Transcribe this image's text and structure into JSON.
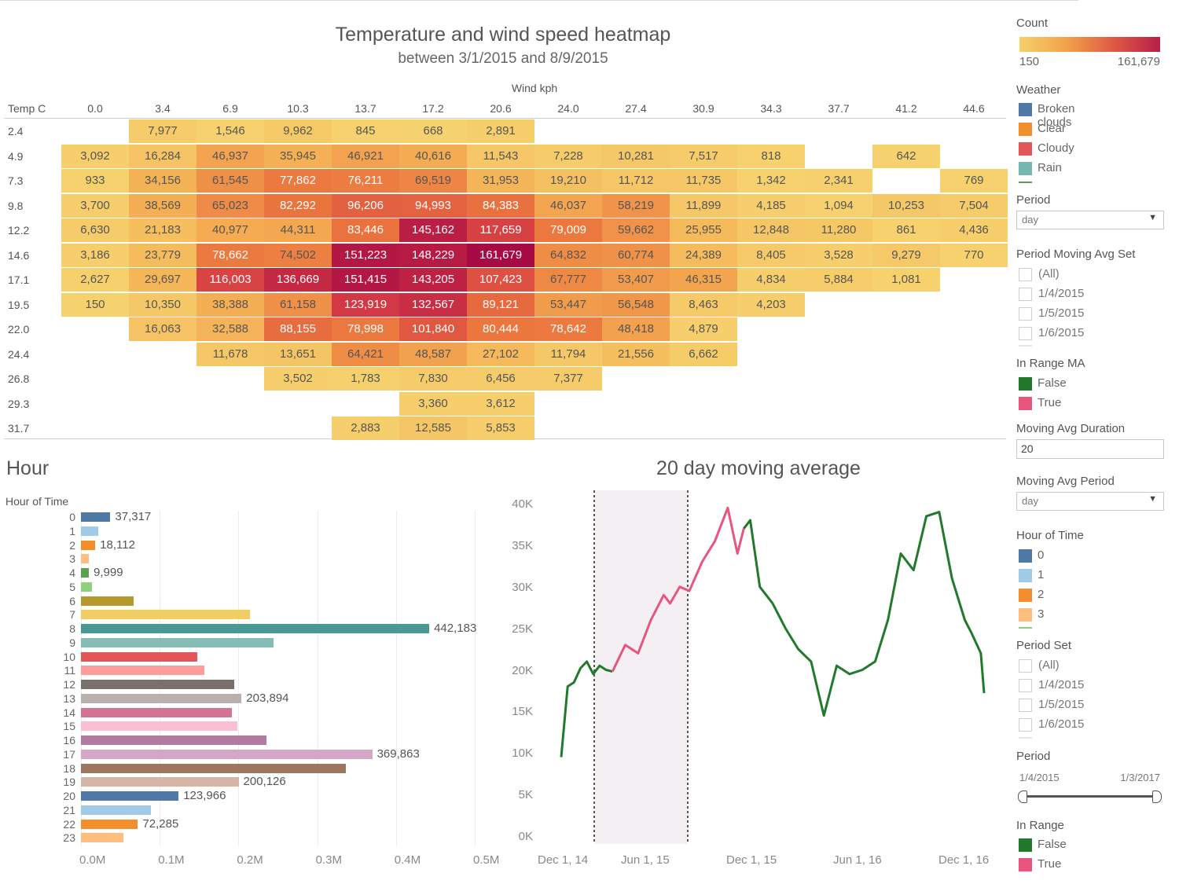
{
  "heatmap": {
    "title": "Temperature and wind speed heatmap",
    "subtitle": "between 3/1/2015 and 8/9/2015",
    "x_axis_title": "Wind kph",
    "y_axis_title": "Temp C",
    "wind_cols": [
      "0.0",
      "3.4",
      "6.9",
      "10.3",
      "13.7",
      "17.2",
      "20.6",
      "24.0",
      "27.4",
      "30.9",
      "34.3",
      "37.7",
      "41.2",
      "44.6"
    ],
    "temp_rows": [
      "2.4",
      "4.9",
      "7.3",
      "9.8",
      "12.2",
      "14.6",
      "17.1",
      "19.5",
      "22.0",
      "24.4",
      "26.8",
      "29.3",
      "31.7"
    ],
    "count_min": 150,
    "count_max": 161679,
    "cells": [
      [
        null,
        "7,977",
        "1,546",
        "9,962",
        "845",
        "668",
        "2,891",
        null,
        null,
        null,
        null,
        null,
        null,
        null
      ],
      [
        "3,092",
        "16,284",
        "46,937",
        "35,945",
        "46,921",
        "40,616",
        "11,543",
        "7,228",
        "10,281",
        "7,517",
        "818",
        null,
        "642",
        null
      ],
      [
        "933",
        "34,156",
        "61,545",
        "77,862",
        "76,211",
        "69,519",
        "31,953",
        "19,210",
        "11,712",
        "11,735",
        "1,342",
        "2,341",
        "",
        "769"
      ],
      [
        "3,700",
        "38,569",
        "65,023",
        "82,292",
        "96,206",
        "94,993",
        "84,383",
        "46,037",
        "58,219",
        "11,899",
        "4,185",
        "1,094",
        "10,253",
        "7,504"
      ],
      [
        "6,630",
        "21,183",
        "40,977",
        "44,311",
        "83,446",
        "145,162",
        "117,659",
        "79,009",
        "59,662",
        "25,955",
        "12,848",
        "11,280",
        "861",
        "4,436"
      ],
      [
        "3,186",
        "23,779",
        "78,662",
        "74,502",
        "151,223",
        "148,229",
        "161,679",
        "64,832",
        "60,774",
        "24,389",
        "8,405",
        "3,528",
        "9,279",
        "770"
      ],
      [
        "2,627",
        "29,697",
        "116,003",
        "136,669",
        "151,415",
        "143,205",
        "107,423",
        "67,777",
        "53,407",
        "46,315",
        "4,834",
        "5,884",
        "1,081",
        null
      ],
      [
        "150",
        "10,350",
        "38,388",
        "61,158",
        "123,919",
        "132,567",
        "89,121",
        "53,447",
        "56,548",
        "8,463",
        "4,203",
        null,
        null,
        null
      ],
      [
        null,
        "16,063",
        "32,588",
        "88,155",
        "78,998",
        "101,840",
        "80,444",
        "78,642",
        "48,418",
        "4,879",
        null,
        null,
        null,
        null
      ],
      [
        null,
        null,
        "11,678",
        "13,651",
        "64,421",
        "48,587",
        "27,102",
        "11,794",
        "21,556",
        "6,662",
        null,
        null,
        null,
        null
      ],
      [
        null,
        null,
        null,
        "3,502",
        "1,783",
        "7,830",
        "6,456",
        "7,377",
        null,
        null,
        null,
        null,
        null,
        null
      ],
      [
        null,
        null,
        null,
        null,
        null,
        "3,360",
        "3,612",
        null,
        null,
        null,
        null,
        null,
        null,
        null
      ],
      [
        null,
        null,
        null,
        null,
        "2,883",
        "12,585",
        "5,853",
        null,
        null,
        null,
        null,
        null,
        null,
        null
      ]
    ]
  },
  "hour_chart": {
    "title": "Hour",
    "axis_title": "Hour of Time",
    "x_ticks": [
      "0.0M",
      "0.1M",
      "0.2M",
      "0.3M",
      "0.4M",
      "0.5M"
    ],
    "hours": [
      "0",
      "1",
      "2",
      "3",
      "4",
      "5",
      "6",
      "7",
      "8",
      "9",
      "10",
      "11",
      "12",
      "13",
      "14",
      "15",
      "16",
      "17",
      "18",
      "19",
      "20",
      "21",
      "22",
      "23"
    ],
    "values": [
      37317,
      22000,
      18112,
      10000,
      9999,
      14000,
      67000,
      215000,
      442183,
      245000,
      148000,
      157000,
      195000,
      203894,
      192000,
      199000,
      236000,
      369863,
      336000,
      200126,
      123966,
      89000,
      72285,
      54000
    ],
    "labels": [
      "37,317",
      "",
      "18,112",
      "",
      "9,999",
      "",
      "",
      "",
      "442,183",
      "",
      "",
      "",
      "",
      "203,894",
      "",
      "",
      "",
      "369,863",
      "",
      "200,126",
      "123,966",
      "",
      "72,285",
      ""
    ],
    "colors": [
      "#4e79a7",
      "#a0cbe8",
      "#f28e2b",
      "#ffbe7d",
      "#59a14f",
      "#8cd17d",
      "#b6992d",
      "#f1ce63",
      "#499894",
      "#86bcb6",
      "#e15759",
      "#ff9d9a",
      "#79706e",
      "#bab0ac",
      "#d37295",
      "#fabfd2",
      "#b07aa1",
      "#d4a6c8",
      "#9d7660",
      "#d7b5a6",
      "#4e79a7",
      "#a0cbe8",
      "#f28e2b",
      "#ffbe7d"
    ]
  },
  "line_chart": {
    "title": "20 day moving average",
    "y_ticks": [
      "40K",
      "35K",
      "30K",
      "25K",
      "20K",
      "15K",
      "10K",
      "5K",
      "0K"
    ],
    "x_ticks": [
      "Dec 1, 14",
      "Jun 1, 15",
      "Dec 1, 15",
      "Jun 1, 16",
      "Dec 1, 16"
    ],
    "series_colors": {
      "in_range": "#e8557e",
      "out_of_range": "#217a2b"
    },
    "out_before": [
      [
        0,
        9500
      ],
      [
        2,
        18000
      ],
      [
        4,
        18500
      ],
      [
        6,
        20200
      ],
      [
        8,
        21000
      ],
      [
        10,
        19500
      ],
      [
        12,
        20500
      ],
      [
        14,
        20000
      ],
      [
        16,
        19800
      ]
    ],
    "in_range": [
      [
        16,
        19800
      ],
      [
        20,
        23000
      ],
      [
        24,
        22000
      ],
      [
        28,
        26000
      ],
      [
        32,
        29000
      ],
      [
        34,
        28000
      ],
      [
        37,
        30000
      ],
      [
        40,
        29500
      ],
      [
        44,
        33000
      ],
      [
        48,
        35500
      ],
      [
        52,
        39500
      ],
      [
        55,
        34000
      ],
      [
        57,
        37000
      ]
    ],
    "out_after": [
      [
        57,
        37000
      ],
      [
        59,
        38000
      ],
      [
        62,
        30000
      ],
      [
        66,
        28000
      ],
      [
        70,
        25000
      ],
      [
        74,
        22500
      ],
      [
        78,
        21000
      ],
      [
        82,
        14500
      ],
      [
        86,
        20500
      ],
      [
        90,
        19500
      ],
      [
        94,
        20000
      ],
      [
        98,
        21000
      ],
      [
        102,
        26000
      ],
      [
        106,
        34000
      ],
      [
        110,
        32000
      ],
      [
        114,
        38500
      ],
      [
        118,
        39000
      ],
      [
        122,
        31000
      ],
      [
        126,
        26000
      ],
      [
        128,
        24500
      ],
      [
        131,
        22000
      ],
      [
        132,
        17200
      ]
    ]
  },
  "filters": {
    "count": {
      "title": "Count",
      "min_label": "150",
      "max_label": "161,679"
    },
    "weather": {
      "title": "Weather",
      "items": [
        {
          "label": "Broken clouds",
          "color": "#4e79a7"
        },
        {
          "label": "Clear",
          "color": "#f28e2b"
        },
        {
          "label": "Cloudy",
          "color": "#e15759"
        },
        {
          "label": "Rain",
          "color": "#76b7b2"
        }
      ]
    },
    "period": {
      "title": "Period",
      "value": "day"
    },
    "period_ma_set": {
      "title": "Period Moving Avg Set",
      "items": [
        "(All)",
        "1/4/2015",
        "1/5/2015",
        "1/6/2015"
      ]
    },
    "in_range_ma": {
      "title": "In Range MA",
      "items": [
        {
          "label": "False",
          "color": "#217a2b"
        },
        {
          "label": "True",
          "color": "#e8557e"
        }
      ]
    },
    "ma_duration": {
      "title": "Moving Avg Duration",
      "value": "20"
    },
    "ma_period": {
      "title": "Moving Avg Period",
      "value": "day"
    },
    "hour_of_time": {
      "title": "Hour of Time",
      "items": [
        {
          "label": "0",
          "color": "#4e79a7"
        },
        {
          "label": "1",
          "color": "#a0cbe8"
        },
        {
          "label": "2",
          "color": "#f28e2b"
        },
        {
          "label": "3",
          "color": "#ffbe7d"
        }
      ]
    },
    "period_set": {
      "title": "Period Set",
      "items": [
        "(All)",
        "1/4/2015",
        "1/5/2015",
        "1/6/2015"
      ]
    },
    "period_range": {
      "title": "Period",
      "start": "1/4/2015",
      "end": "1/3/2017"
    },
    "in_range": {
      "title": "In Range",
      "items": [
        {
          "label": "False",
          "color": "#217a2b"
        },
        {
          "label": "True",
          "color": "#e8557e"
        }
      ]
    }
  }
}
